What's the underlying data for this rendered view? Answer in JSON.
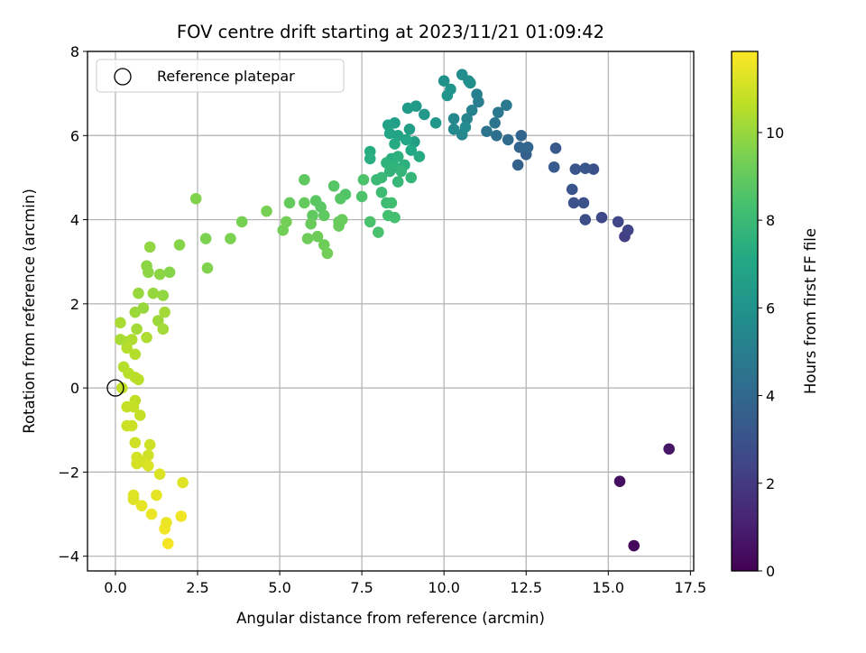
{
  "chart_data": {
    "type": "scatter",
    "title": "FOV centre drift starting at 2023/11/21 01:09:42",
    "xlabel": "Angular distance from reference (arcmin)",
    "ylabel": "Rotation from reference (arcmin)",
    "xlim": [
      -0.85,
      17.6
    ],
    "ylim": [
      -4.35,
      8.0
    ],
    "xticks": [
      0.0,
      2.5,
      5.0,
      7.5,
      10.0,
      12.5,
      15.0,
      17.5
    ],
    "xtick_labels": [
      "0.0",
      "2.5",
      "5.0",
      "7.5",
      "10.0",
      "12.5",
      "15.0",
      "17.5"
    ],
    "yticks": [
      -4,
      -2,
      0,
      2,
      4,
      6,
      8
    ],
    "ytick_labels": [
      "−4",
      "−2",
      "0",
      "2",
      "4",
      "6",
      "8"
    ],
    "grid": true,
    "legend": {
      "position": "top-left",
      "entries": [
        "Reference platepar"
      ]
    },
    "reference_point": {
      "x": 0.0,
      "y": 0.0
    },
    "colorbar": {
      "label": "Hours from first FF file",
      "colormap": "viridis",
      "range": [
        0,
        11.85
      ],
      "ticks": [
        0,
        2,
        4,
        6,
        8,
        10
      ],
      "tick_labels": [
        "0",
        "2",
        "4",
        "6",
        "8",
        "10"
      ]
    },
    "points": [
      [
        15.78,
        -3.75,
        0.2
      ],
      [
        15.35,
        -2.22,
        0.45
      ],
      [
        16.85,
        -1.45,
        0.7
      ],
      [
        15.5,
        3.6,
        2.2
      ],
      [
        15.6,
        3.75,
        2.4
      ],
      [
        15.3,
        3.95,
        2.5
      ],
      [
        14.8,
        4.05,
        2.6
      ],
      [
        14.3,
        4.0,
        2.8
      ],
      [
        14.55,
        5.2,
        2.9
      ],
      [
        14.25,
        4.4,
        3.0
      ],
      [
        13.95,
        4.4,
        3.0
      ],
      [
        13.9,
        4.72,
        3.1
      ],
      [
        14.0,
        5.2,
        3.1
      ],
      [
        14.3,
        5.22,
        3.2
      ],
      [
        13.4,
        5.7,
        3.3
      ],
      [
        13.35,
        5.25,
        3.4
      ],
      [
        12.5,
        5.55,
        3.6
      ],
      [
        12.25,
        5.3,
        3.7
      ],
      [
        12.3,
        5.72,
        3.8
      ],
      [
        12.35,
        6.0,
        3.8
      ],
      [
        12.55,
        5.72,
        3.9
      ],
      [
        11.95,
        5.9,
        4.1
      ],
      [
        11.6,
        6.0,
        4.3
      ],
      [
        11.3,
        6.1,
        4.5
      ],
      [
        11.55,
        6.3,
        4.5
      ],
      [
        11.65,
        6.55,
        4.7
      ],
      [
        11.9,
        6.72,
        4.8
      ],
      [
        11.05,
        6.8,
        5.0
      ],
      [
        11.0,
        6.98,
        5.1
      ],
      [
        10.85,
        6.6,
        5.2
      ],
      [
        10.7,
        6.4,
        5.3
      ],
      [
        10.3,
        6.4,
        5.5
      ],
      [
        10.55,
        6.02,
        5.5
      ],
      [
        10.3,
        6.15,
        5.6
      ],
      [
        10.65,
        6.2,
        5.6
      ],
      [
        10.55,
        7.45,
        5.7
      ],
      [
        10.75,
        7.3,
        5.8
      ],
      [
        10.8,
        7.25,
        5.9
      ],
      [
        10.0,
        7.3,
        6.0
      ],
      [
        10.1,
        6.95,
        6.1
      ],
      [
        10.2,
        7.1,
        6.1
      ],
      [
        9.75,
        6.3,
        6.2
      ],
      [
        9.4,
        6.5,
        6.3
      ],
      [
        9.15,
        6.7,
        6.4
      ],
      [
        8.9,
        6.65,
        6.5
      ],
      [
        9.1,
        5.85,
        6.6
      ],
      [
        8.95,
        6.15,
        6.6
      ],
      [
        8.5,
        6.3,
        6.7
      ],
      [
        8.3,
        6.25,
        6.8
      ],
      [
        8.35,
        6.05,
        6.9
      ],
      [
        8.6,
        6.0,
        6.9
      ],
      [
        8.85,
        5.9,
        7.0
      ],
      [
        9.0,
        5.65,
        7.1
      ],
      [
        9.25,
        5.5,
        7.2
      ],
      [
        8.5,
        5.8,
        7.2
      ],
      [
        7.75,
        5.62,
        7.3
      ],
      [
        7.75,
        5.45,
        7.4
      ],
      [
        8.4,
        5.45,
        7.4
      ],
      [
        8.6,
        5.5,
        7.5
      ],
      [
        8.8,
        5.3,
        7.5
      ],
      [
        8.5,
        5.25,
        7.6
      ],
      [
        8.25,
        5.35,
        7.6
      ],
      [
        8.35,
        5.15,
        7.7
      ],
      [
        8.7,
        5.15,
        7.8
      ],
      [
        9.0,
        5.0,
        7.8
      ],
      [
        8.6,
        4.9,
        7.9
      ],
      [
        8.1,
        5.0,
        7.9
      ],
      [
        7.95,
        4.95,
        8.0
      ],
      [
        8.1,
        4.65,
        8.1
      ],
      [
        8.25,
        4.4,
        8.1
      ],
      [
        8.4,
        4.4,
        8.2
      ],
      [
        8.5,
        4.05,
        8.3
      ],
      [
        8.3,
        4.1,
        8.3
      ],
      [
        8.0,
        3.7,
        8.4
      ],
      [
        7.75,
        3.95,
        8.4
      ],
      [
        7.5,
        4.55,
        8.5
      ],
      [
        7.55,
        4.95,
        8.5
      ],
      [
        7.0,
        4.6,
        8.6
      ],
      [
        6.85,
        4.5,
        8.7
      ],
      [
        6.65,
        4.8,
        8.7
      ],
      [
        6.1,
        4.45,
        8.8
      ],
      [
        6.25,
        4.3,
        8.8
      ],
      [
        6.35,
        4.1,
        8.9
      ],
      [
        6.0,
        4.1,
        8.9
      ],
      [
        5.75,
        4.95,
        8.9
      ],
      [
        5.75,
        4.4,
        9.0
      ],
      [
        5.3,
        4.4,
        9.0
      ],
      [
        6.8,
        3.95,
        9.0
      ],
      [
        6.9,
        4.0,
        9.1
      ],
      [
        6.8,
        3.85,
        9.1
      ],
      [
        5.95,
        3.9,
        9.1
      ],
      [
        5.85,
        3.55,
        9.2
      ],
      [
        6.15,
        3.6,
        9.2
      ],
      [
        6.35,
        3.4,
        9.2
      ],
      [
        6.45,
        3.2,
        9.3
      ],
      [
        5.2,
        3.95,
        9.3
      ],
      [
        5.1,
        3.75,
        9.3
      ],
      [
        4.6,
        4.2,
        9.4
      ],
      [
        3.85,
        3.95,
        9.4
      ],
      [
        3.5,
        3.55,
        9.5
      ],
      [
        2.75,
        3.55,
        9.5
      ],
      [
        2.8,
        2.85,
        9.6
      ],
      [
        2.45,
        4.5,
        9.6
      ],
      [
        1.95,
        3.4,
        9.7
      ],
      [
        1.65,
        2.75,
        9.7
      ],
      [
        1.35,
        2.7,
        9.8
      ],
      [
        1.0,
        2.75,
        9.8
      ],
      [
        0.95,
        2.9,
        9.8
      ],
      [
        1.05,
        3.35,
        9.9
      ],
      [
        1.45,
        2.2,
        9.9
      ],
      [
        1.15,
        2.25,
        10.0
      ],
      [
        0.7,
        2.25,
        10.0
      ],
      [
        0.85,
        1.9,
        10.0
      ],
      [
        0.6,
        1.8,
        10.1
      ],
      [
        1.3,
        1.6,
        10.1
      ],
      [
        1.5,
        1.8,
        10.2
      ],
      [
        1.45,
        1.4,
        10.2
      ],
      [
        0.65,
        1.4,
        10.2
      ],
      [
        0.15,
        1.55,
        10.3
      ],
      [
        0.15,
        1.15,
        10.3
      ],
      [
        0.35,
        1.1,
        10.3
      ],
      [
        0.5,
        1.15,
        10.4
      ],
      [
        0.95,
        1.2,
        10.4
      ],
      [
        0.35,
        0.95,
        10.5
      ],
      [
        0.6,
        0.8,
        10.5
      ],
      [
        0.25,
        0.5,
        10.5
      ],
      [
        0.4,
        0.35,
        10.6
      ],
      [
        0.6,
        0.25,
        10.6
      ],
      [
        0.7,
        0.2,
        10.6
      ],
      [
        0.2,
        0.0,
        10.7
      ],
      [
        0.6,
        -0.3,
        10.7
      ],
      [
        0.35,
        -0.45,
        10.8
      ],
      [
        0.55,
        -0.45,
        10.8
      ],
      [
        0.75,
        -0.65,
        10.8
      ],
      [
        0.35,
        -0.9,
        10.9
      ],
      [
        0.5,
        -0.9,
        10.9
      ],
      [
        0.6,
        -1.3,
        11.0
      ],
      [
        1.05,
        -1.35,
        11.0
      ],
      [
        1.0,
        -1.6,
        11.0
      ],
      [
        0.65,
        -1.65,
        11.1
      ],
      [
        0.85,
        -1.75,
        11.1
      ],
      [
        0.65,
        -1.8,
        11.1
      ],
      [
        1.0,
        -1.85,
        11.2
      ],
      [
        1.35,
        -2.05,
        11.2
      ],
      [
        2.05,
        -2.25,
        11.3
      ],
      [
        0.55,
        -2.55,
        11.3
      ],
      [
        0.55,
        -2.65,
        11.3
      ],
      [
        1.25,
        -2.55,
        11.4
      ],
      [
        0.8,
        -2.8,
        11.4
      ],
      [
        1.1,
        -3.0,
        11.5
      ],
      [
        1.55,
        -3.2,
        11.5
      ],
      [
        1.5,
        -3.35,
        11.6
      ],
      [
        2.0,
        -3.05,
        11.6
      ],
      [
        1.6,
        -3.7,
        11.7
      ]
    ]
  }
}
